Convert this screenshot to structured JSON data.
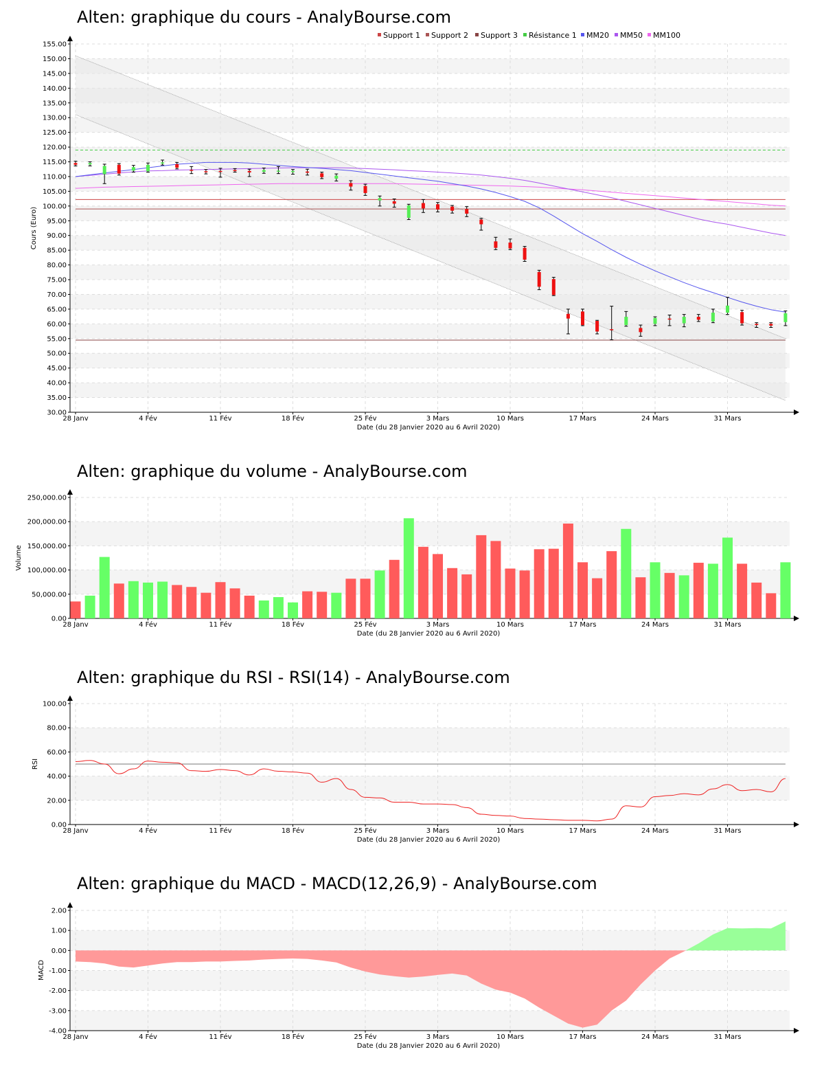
{
  "site": "AnalyBourse.com",
  "x_axis": {
    "label": "Date (du 28 Janvier 2020 au 6 Avril 2020)",
    "ticks": [
      "28 Janv",
      "4 Fév",
      "11 Fév",
      "18 Fév",
      "25 Fév",
      "3 Mars",
      "10 Mars",
      "17 Mars",
      "24 Mars",
      "31 Mars"
    ]
  },
  "colors": {
    "up": "#55ee55",
    "down": "#ee1111",
    "volume_up": "#66ff66",
    "volume_down": "#ff5b5b",
    "support1": "#cc4444",
    "support2": "#aa5555",
    "support3": "#884444",
    "resistance1": "#44cc44",
    "mm20": "#5555ee",
    "mm50": "#aa55ee",
    "mm100": "#ee66ee",
    "rsi": "#ee2222",
    "macd_neg": "#ff9999",
    "macd_pos": "#99ff99"
  },
  "chart_data": [
    {
      "type": "candlestick",
      "title": "Alten: graphique du cours - AnalyBourse.com",
      "ylabel": "Cours (Euro)",
      "xlabel": "Date (du 28 Janvier 2020 au 6 Avril 2020)",
      "ylim": [
        30,
        155
      ],
      "yticks": [
        "30.00",
        "35.00",
        "40.00",
        "45.00",
        "50.00",
        "55.00",
        "60.00",
        "65.00",
        "70.00",
        "75.00",
        "80.00",
        "85.00",
        "90.00",
        "95.00",
        "100.00",
        "105.00",
        "110.00",
        "115.00",
        "120.00",
        "125.00",
        "130.00",
        "135.00",
        "140.00",
        "145.00",
        "150.00",
        "155.00"
      ],
      "legend": [
        "Support 1",
        "Support 2",
        "Support 3",
        "Résistance 1",
        "MM20",
        "MM50",
        "MM100"
      ],
      "candles": [
        {
          "date": "28 Janv",
          "open": 114.6,
          "close": 114.0,
          "high": 115.2,
          "low": 113.6
        },
        {
          "date": "29 Janv",
          "open": 114.1,
          "close": 114.6,
          "high": 115.0,
          "low": 113.6
        },
        {
          "date": "30 Janv",
          "open": 110.8,
          "close": 113.6,
          "high": 114.2,
          "low": 107.6
        },
        {
          "date": "31 Janv",
          "open": 114.0,
          "close": 111.0,
          "high": 114.4,
          "low": 110.5
        },
        {
          "date": "3 Fév",
          "open": 112.0,
          "close": 113.2,
          "high": 113.8,
          "low": 111.5
        },
        {
          "date": "4 Fév",
          "open": 111.8,
          "close": 114.0,
          "high": 114.6,
          "low": 111.5
        },
        {
          "date": "5 Fév",
          "open": 114.4,
          "close": 114.8,
          "high": 115.6,
          "low": 113.9
        },
        {
          "date": "6 Fév",
          "open": 114.2,
          "close": 113.0,
          "high": 114.8,
          "low": 112.6
        },
        {
          "date": "7 Fév",
          "open": 112.3,
          "close": 112.0,
          "high": 113.4,
          "low": 111.0
        },
        {
          "date": "10 Fév",
          "open": 111.8,
          "close": 111.6,
          "high": 112.4,
          "low": 110.9
        },
        {
          "date": "11 Fév",
          "open": 111.9,
          "close": 111.7,
          "high": 112.8,
          "low": 109.8
        },
        {
          "date": "12 Fév",
          "open": 112.2,
          "close": 111.9,
          "high": 112.7,
          "low": 111.5
        },
        {
          "date": "13 Fév",
          "open": 111.9,
          "close": 111.4,
          "high": 112.5,
          "low": 110.0
        },
        {
          "date": "14 Fév",
          "open": 111.6,
          "close": 112.2,
          "high": 112.9,
          "low": 111.1
        },
        {
          "date": "17 Fév",
          "open": 111.9,
          "close": 112.0,
          "high": 113.4,
          "low": 111.0
        },
        {
          "date": "18 Fév",
          "open": 111.5,
          "close": 111.9,
          "high": 112.4,
          "low": 110.8
        },
        {
          "date": "19 Fév",
          "open": 111.7,
          "close": 111.3,
          "high": 112.5,
          "low": 110.5
        },
        {
          "date": "20 Fév",
          "open": 111.1,
          "close": 109.8,
          "high": 111.5,
          "low": 109.3
        },
        {
          "date": "21 Fév",
          "open": 109.3,
          "close": 110.3,
          "high": 110.9,
          "low": 108.5
        },
        {
          "date": "24 Fév",
          "open": 107.8,
          "close": 106.6,
          "high": 108.6,
          "low": 105.4
        },
        {
          "date": "25 Fév",
          "open": 106.8,
          "close": 104.4,
          "high": 107.4,
          "low": 103.6
        },
        {
          "date": "26 Fév",
          "open": 101.9,
          "close": 102.7,
          "high": 103.4,
          "low": 100.0
        },
        {
          "date": "27 Fév",
          "open": 101.6,
          "close": 100.8,
          "high": 102.4,
          "low": 99.6
        },
        {
          "date": "28 Fév",
          "open": 96.0,
          "close": 100.2,
          "high": 100.6,
          "low": 95.4
        },
        {
          "date": "2 Mars",
          "open": 101.0,
          "close": 99.2,
          "high": 102.2,
          "low": 97.8
        },
        {
          "date": "3 Mars",
          "open": 100.6,
          "close": 98.8,
          "high": 101.2,
          "low": 98.0
        },
        {
          "date": "4 Mars",
          "open": 99.8,
          "close": 98.4,
          "high": 100.2,
          "low": 97.6
        },
        {
          "date": "5 Mars",
          "open": 99.0,
          "close": 97.4,
          "high": 99.8,
          "low": 96.4
        },
        {
          "date": "6 Mars",
          "open": 95.4,
          "close": 93.8,
          "high": 95.8,
          "low": 91.8
        },
        {
          "date": "9 Mars",
          "open": 88.0,
          "close": 85.8,
          "high": 89.4,
          "low": 85.2
        },
        {
          "date": "10 Mars",
          "open": 87.6,
          "close": 85.6,
          "high": 88.8,
          "low": 85.2
        },
        {
          "date": "11 Mars",
          "open": 85.8,
          "close": 81.8,
          "high": 86.3,
          "low": 81.2
        },
        {
          "date": "12 Mars",
          "open": 77.6,
          "close": 72.6,
          "high": 78.2,
          "low": 71.6
        },
        {
          "date": "13 Mars",
          "open": 75.2,
          "close": 69.8,
          "high": 75.8,
          "low": 69.6
        },
        {
          "date": "16 Mars",
          "open": 63.4,
          "close": 61.8,
          "high": 65.0,
          "low": 56.6
        },
        {
          "date": "17 Mars",
          "open": 64.2,
          "close": 59.6,
          "high": 65.0,
          "low": 59.4
        },
        {
          "date": "18 Mars",
          "open": 61.0,
          "close": 57.4,
          "high": 61.2,
          "low": 56.6
        },
        {
          "date": "19 Mars",
          "open": 58.2,
          "close": 58.0,
          "high": 66.0,
          "low": 54.6
        },
        {
          "date": "20 Mars",
          "open": 59.6,
          "close": 62.4,
          "high": 64.2,
          "low": 59.2
        },
        {
          "date": "23 Mars",
          "open": 58.6,
          "close": 57.2,
          "high": 59.6,
          "low": 55.8
        },
        {
          "date": "24 Mars",
          "open": 60.0,
          "close": 62.0,
          "high": 62.4,
          "low": 59.4
        },
        {
          "date": "25 Mars",
          "open": 61.8,
          "close": 61.6,
          "high": 63.0,
          "low": 59.4
        },
        {
          "date": "26 Mars",
          "open": 60.2,
          "close": 62.4,
          "high": 63.2,
          "low": 59.0
        },
        {
          "date": "27 Mars",
          "open": 62.4,
          "close": 61.4,
          "high": 63.2,
          "low": 60.8
        },
        {
          "date": "30 Mars",
          "open": 60.8,
          "close": 63.8,
          "high": 65.0,
          "low": 60.4
        },
        {
          "date": "31 Mars",
          "open": 63.8,
          "close": 66.2,
          "high": 69.0,
          "low": 63.2
        },
        {
          "date": "1 Avr",
          "open": 64.0,
          "close": 60.2,
          "high": 64.6,
          "low": 59.6
        },
        {
          "date": "2 Avr",
          "open": 60.0,
          "close": 59.6,
          "high": 60.4,
          "low": 58.8
        },
        {
          "date": "3 Avr",
          "open": 60.0,
          "close": 59.4,
          "high": 60.4,
          "low": 58.8
        },
        {
          "date": "6 Avr",
          "open": 60.6,
          "close": 63.6,
          "high": 64.4,
          "low": 59.4
        }
      ],
      "levels": {
        "support1": 102.2,
        "support2": 99.0,
        "support3": 54.5,
        "resistance1": 119.0
      },
      "mm20": [
        110.0,
        110.6,
        111.2,
        111.8,
        112.4,
        113.0,
        113.6,
        114.2,
        114.5,
        114.8,
        114.8,
        114.8,
        114.6,
        114.2,
        113.8,
        113.4,
        113.1,
        112.8,
        112.4,
        112.0,
        111.4,
        110.8,
        110.2,
        109.6,
        109.0,
        108.4,
        107.6,
        106.8,
        105.8,
        104.6,
        103.2,
        101.6,
        99.4,
        96.6,
        93.6,
        90.6,
        88.0,
        85.2,
        82.6,
        80.2,
        78.0,
        76.0,
        74.0,
        72.2,
        70.6,
        69.0,
        67.4,
        66.0,
        64.8,
        64.0
      ],
      "mm50": [
        110.0,
        110.4,
        110.8,
        111.2,
        111.6,
        111.9,
        112.0,
        112.2,
        112.3,
        112.4,
        112.5,
        112.6,
        112.7,
        112.8,
        112.9,
        113.0,
        113.0,
        113.0,
        113.0,
        112.9,
        112.7,
        112.5,
        112.3,
        112.0,
        111.8,
        111.5,
        111.2,
        110.9,
        110.5,
        110.0,
        109.4,
        108.7,
        107.8,
        106.8,
        105.8,
        104.8,
        103.8,
        102.8,
        101.6,
        100.4,
        99.2,
        98.0,
        96.8,
        95.6,
        94.6,
        93.8,
        92.8,
        91.8,
        90.8,
        90.0
      ],
      "mm100": [
        106.0,
        106.2,
        106.4,
        106.5,
        106.6,
        106.7,
        106.8,
        106.9,
        107.0,
        107.1,
        107.2,
        107.3,
        107.4,
        107.5,
        107.6,
        107.6,
        107.6,
        107.6,
        107.6,
        107.6,
        107.6,
        107.6,
        107.6,
        107.5,
        107.4,
        107.3,
        107.2,
        107.1,
        107.0,
        106.9,
        106.8,
        106.6,
        106.4,
        106.1,
        105.8,
        105.5,
        105.1,
        104.7,
        104.3,
        103.9,
        103.5,
        103.1,
        102.7,
        102.3,
        101.9,
        101.5,
        101.1,
        100.7,
        100.3,
        100.0
      ],
      "trend_upper": [
        151.0,
        55.0
      ],
      "trend_lower": [
        131.0,
        34.0
      ]
    },
    {
      "type": "bar",
      "title": "Alten: graphique du volume - AnalyBourse.com",
      "ylabel": "Volume",
      "xlabel": "Date (du 28 Janvier 2020 au 6 Avril 2020)",
      "ylim": [
        0,
        250000
      ],
      "yticks": [
        "0.00",
        "50,000.00",
        "100,000.00",
        "150,000.00",
        "200,000.00",
        "250,000.00"
      ],
      "values": [
        35000,
        47000,
        127000,
        72000,
        77000,
        74000,
        76000,
        69000,
        65000,
        53000,
        75000,
        62000,
        47000,
        37000,
        44000,
        33000,
        56000,
        55000,
        53000,
        82000,
        82000,
        99000,
        121000,
        207000,
        148000,
        133000,
        104000,
        91000,
        172000,
        160000,
        103000,
        99000,
        143000,
        144000,
        196000,
        116000,
        83000,
        139000,
        185000,
        85000,
        116000,
        94000,
        89000,
        115000,
        113000,
        167000,
        113000,
        74000,
        52000,
        116000
      ]
    },
    {
      "type": "line",
      "title": "Alten: graphique du RSI - RSI(14) - AnalyBourse.com",
      "ylabel": "RSI",
      "xlabel": "Date (du 28 Janvier 2020 au 6 Avril 2020)",
      "ylim": [
        0,
        100
      ],
      "yticks": [
        "0.00",
        "20.00",
        "40.00",
        "60.00",
        "80.00",
        "100.00"
      ],
      "reference": 50,
      "values": [
        52.0,
        53.0,
        50.0,
        42.0,
        46.0,
        52.5,
        51.5,
        51.0,
        44.5,
        44.0,
        45.5,
        44.5,
        41.0,
        46.0,
        44.0,
        43.5,
        42.5,
        35.0,
        38.0,
        29.0,
        22.5,
        22.0,
        18.5,
        18.5,
        17.0,
        17.0,
        16.5,
        14.0,
        8.5,
        7.5,
        7.0,
        5.0,
        4.5,
        4.0,
        3.5,
        3.5,
        3.0,
        4.5,
        15.5,
        14.5,
        23.0,
        24.0,
        25.5,
        24.5,
        29.5,
        33.0,
        28.0,
        29.0,
        27.0,
        38.0
      ]
    },
    {
      "type": "area",
      "title": "Alten: graphique du MACD - MACD(12,26,9) - AnalyBourse.com",
      "ylabel": "MACD",
      "xlabel": "Date (du 28 Janvier 2020 au 6 Avril 2020)",
      "ylim": [
        -4,
        2
      ],
      "yticks": [
        "-4.00",
        "-3.00",
        "-2.00",
        "-1.00",
        "0.00",
        "1.00",
        "2.00"
      ],
      "values": [
        -0.55,
        -0.58,
        -0.65,
        -0.8,
        -0.85,
        -0.75,
        -0.65,
        -0.58,
        -0.58,
        -0.55,
        -0.55,
        -0.52,
        -0.5,
        -0.45,
        -0.42,
        -0.4,
        -0.42,
        -0.5,
        -0.6,
        -0.85,
        -1.05,
        -1.2,
        -1.28,
        -1.35,
        -1.3,
        -1.22,
        -1.15,
        -1.25,
        -1.65,
        -1.95,
        -2.1,
        -2.4,
        -2.85,
        -3.25,
        -3.65,
        -3.85,
        -3.7,
        -3.0,
        -2.5,
        -1.7,
        -1.0,
        -0.4,
        -0.05,
        0.35,
        0.8,
        1.12,
        1.1,
        1.12,
        1.1,
        1.45
      ]
    }
  ]
}
